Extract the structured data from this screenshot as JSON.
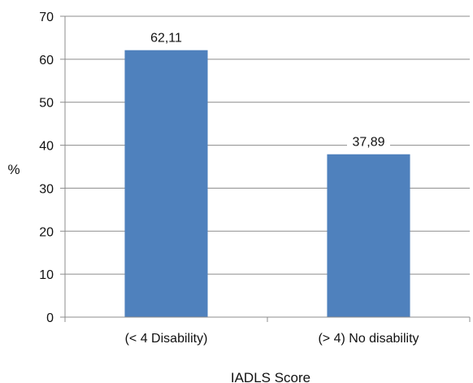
{
  "chart_data": {
    "type": "bar",
    "categories": [
      "(< 4 Disability)",
      "(> 4) No disability"
    ],
    "values": [
      62.11,
      37.89
    ],
    "data_labels": [
      "62,11",
      "37,89"
    ],
    "title": "",
    "xlabel": "IADLS Score",
    "ylabel": "%",
    "ylim": [
      0,
      70
    ],
    "yticks": [
      0,
      10,
      20,
      30,
      40,
      50,
      60,
      70
    ],
    "grid": true,
    "legend": "none",
    "bar_color": "#4f81bd",
    "grid_color": "#8c8c8c"
  }
}
